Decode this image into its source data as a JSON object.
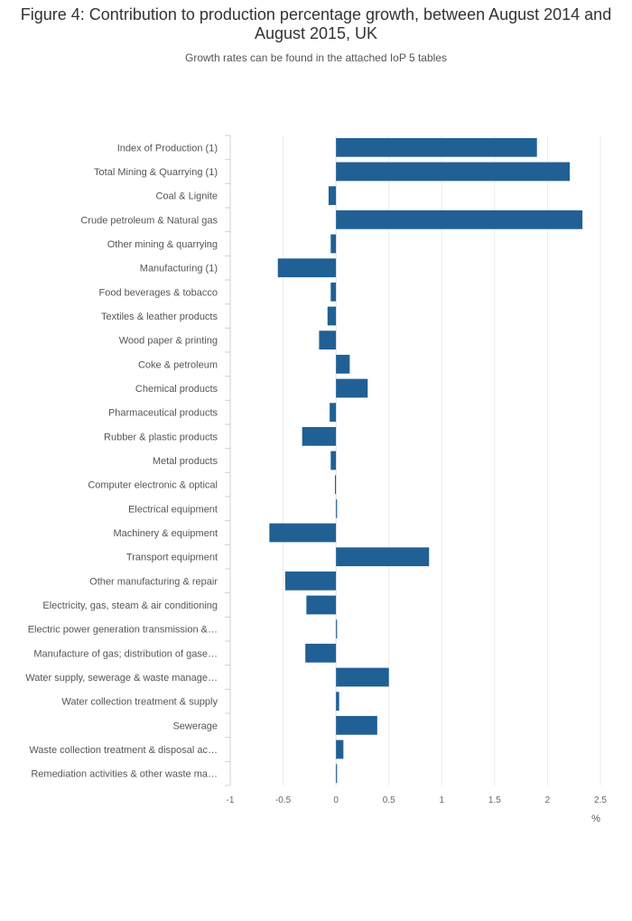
{
  "chart_data": {
    "type": "bar",
    "orientation": "horizontal",
    "title": "Figure 4: Contribution to production percentage growth, between August 2014 and August 2015, UK",
    "subtitle": "Growth rates can be found in the attached IoP 5 tables",
    "xlabel": "%",
    "ylabel": "",
    "xlim": [
      -1,
      2.5
    ],
    "xticks": [
      -1,
      -0.5,
      0,
      0.5,
      1,
      1.5,
      2,
      2.5
    ],
    "xtick_labels": [
      "-1",
      "-0.5",
      "0",
      "0.5",
      "1",
      "1.5",
      "2",
      "2.5"
    ],
    "grid": true,
    "bar_color": "#206095",
    "categories": [
      "Index of Production (1)",
      "Total Mining & Quarrying (1)",
      "Coal & Lignite",
      "Crude petroleum & Natural gas",
      "Other mining & quarrying",
      "Manufacturing (1)",
      "Food beverages & tobacco",
      "Textiles & leather products",
      "Wood paper & printing",
      "Coke & petroleum",
      "Chemical products",
      "Pharmaceutical products",
      "Rubber & plastic products",
      "Metal products",
      "Computer electronic & optical",
      "Electrical equipment",
      "Machinery & equipment",
      "Transport equipment",
      "Other manufacturing & repair",
      "Electricity, gas, steam & air conditioning",
      "Electric power generation transmission &…",
      "Manufacture of gas; distribution of gase…",
      "Water supply, sewerage & waste manage…",
      "Water collection treatment & supply",
      "Sewerage",
      "Waste collection treatment & disposal ac…",
      "Remediation activities & other waste ma…"
    ],
    "values": [
      1.9,
      2.21,
      -0.07,
      2.33,
      -0.05,
      -0.55,
      -0.05,
      -0.08,
      -0.16,
      0.13,
      0.3,
      -0.06,
      -0.32,
      -0.05,
      -0.01,
      0.01,
      -0.63,
      0.88,
      -0.48,
      -0.28,
      0.01,
      -0.29,
      0.5,
      0.03,
      0.39,
      0.07,
      0.01
    ]
  }
}
